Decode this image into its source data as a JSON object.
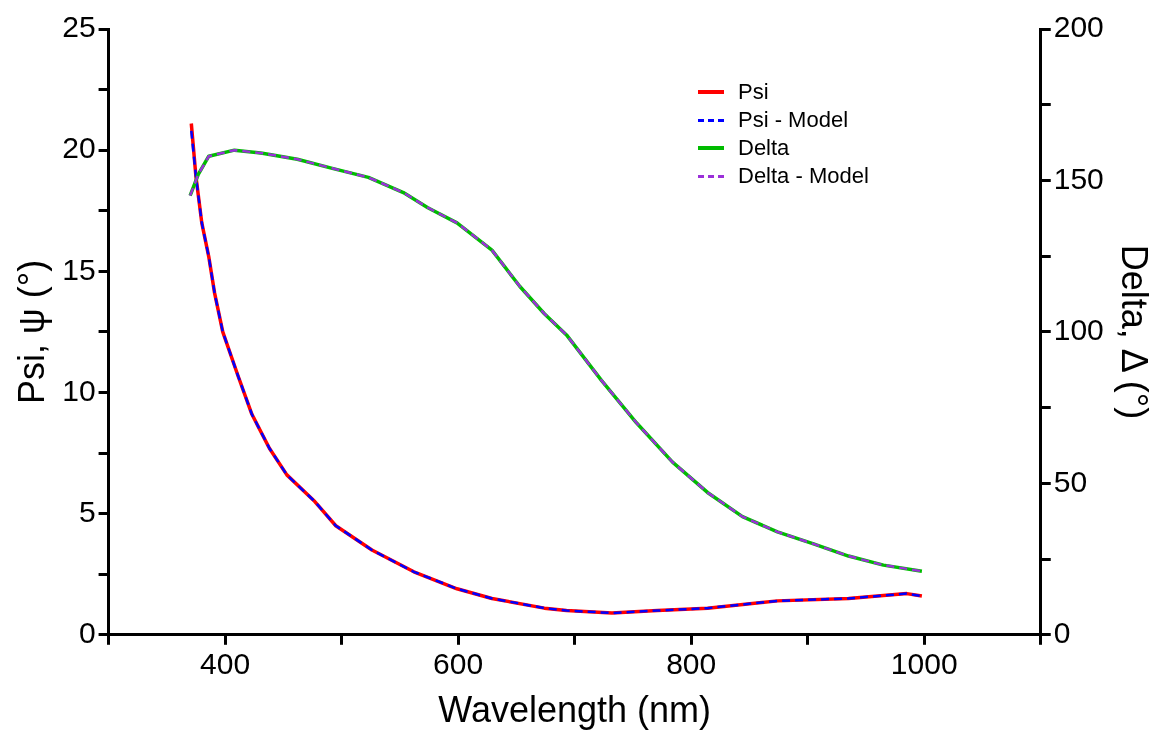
{
  "chart_data": {
    "type": "line",
    "xlabel": "Wavelength (nm)",
    "ylabel": "Psi, ψ (°)",
    "y2label": "Delta, Δ (°)",
    "xlim": [
      300,
      1100
    ],
    "xticks": [
      {
        "value": 300,
        "label": null
      },
      400,
      {
        "value": 500,
        "label": null
      },
      600,
      {
        "value": 700,
        "label": null
      },
      800,
      {
        "value": 900,
        "label": null
      },
      1000,
      {
        "value": 1100,
        "label": null
      }
    ],
    "ylim": [
      0,
      25
    ],
    "yticks": [
      0,
      {
        "value": 2.5,
        "label": null
      },
      5,
      {
        "value": 7.5,
        "label": null
      },
      10,
      {
        "value": 12.5,
        "label": null
      },
      15,
      {
        "value": 17.5,
        "label": null
      },
      20,
      {
        "value": 22.5,
        "label": null
      },
      25
    ],
    "y2lim": [
      0,
      200
    ],
    "y2ticks": [
      0,
      {
        "value": 25,
        "label": null
      },
      50,
      {
        "value": 75,
        "label": null
      },
      100,
      {
        "value": 125,
        "label": null
      },
      150,
      {
        "value": 175,
        "label": null
      },
      200
    ],
    "grid": false,
    "legend": "top right",
    "marker": "none",
    "series": [
      {
        "name": "Psi",
        "color": "#ff0000",
        "line_style": "solid",
        "x": [
          371,
          375,
          380,
          386,
          391,
          398,
          411,
          423,
          438,
          453,
          477,
          495,
          526,
          562,
          599,
          629,
          674,
          693,
          732,
          771,
          814,
          874,
          935,
          985,
          998
        ],
        "values": [
          21.1,
          18.9,
          17.0,
          15.6,
          14.1,
          12.5,
          10.7,
          9.1,
          7.7,
          6.6,
          5.5,
          4.5,
          3.5,
          2.6,
          1.9,
          1.5,
          1.1,
          1.0,
          0.9,
          1.0,
          1.1,
          1.4,
          1.5,
          1.7,
          1.6
        ]
      },
      {
        "name": "Psi - Model",
        "color": "#0000ff",
        "line_style": "dashed",
        "x": [
          371,
          375,
          380,
          386,
          391,
          398,
          411,
          423,
          438,
          453,
          477,
          495,
          526,
          562,
          599,
          629,
          674,
          693,
          732,
          771,
          814,
          874,
          935,
          985,
          998
        ],
        "values": [
          20.8,
          18.9,
          17.0,
          15.6,
          14.1,
          12.5,
          10.7,
          9.1,
          7.7,
          6.6,
          5.5,
          4.5,
          3.5,
          2.6,
          1.9,
          1.5,
          1.1,
          1.0,
          0.9,
          1.0,
          1.1,
          1.4,
          1.5,
          1.7,
          1.6
        ]
      },
      {
        "name": "Delta",
        "color": "#00bb00",
        "line_style": "solid",
        "axis": "y2",
        "x": [
          370,
          377,
          386,
          408,
          432,
          462,
          492,
          523,
          553,
          574,
          599,
          629,
          653,
          674,
          693,
          723,
          753,
          784,
          814,
          844,
          874,
          905,
          935,
          965,
          998
        ],
        "values": [
          145,
          152,
          158,
          160,
          159,
          157,
          154,
          151,
          146,
          141,
          136,
          127,
          115,
          106,
          99,
          84,
          70,
          57,
          47,
          39,
          34,
          30,
          26,
          23,
          21
        ]
      },
      {
        "name": "Delta - Model",
        "color": "#9b30d9",
        "line_style": "dashed",
        "axis": "y2",
        "x": [
          370,
          377,
          386,
          408,
          432,
          462,
          492,
          523,
          553,
          574,
          599,
          629,
          653,
          674,
          693,
          723,
          753,
          784,
          814,
          844,
          874,
          905,
          935,
          965,
          998
        ],
        "values": [
          145,
          152,
          158,
          160,
          159,
          157,
          154,
          151,
          146,
          141,
          136,
          127,
          115,
          106,
          99,
          84,
          70,
          57,
          47,
          39,
          34,
          30,
          26,
          23,
          21
        ]
      }
    ]
  }
}
